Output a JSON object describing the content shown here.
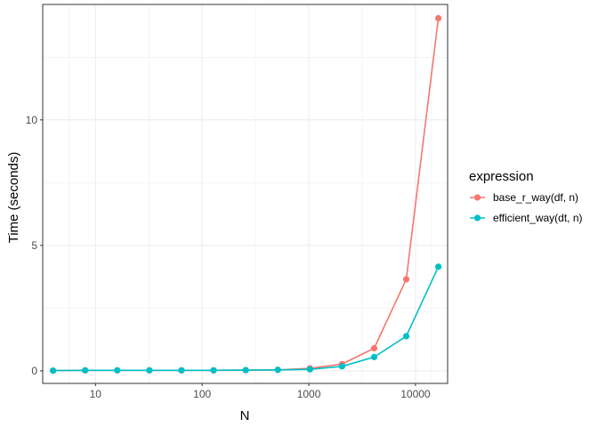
{
  "chart_data": {
    "type": "line",
    "xlabel": "N",
    "ylabel": "Time (seconds)",
    "x_scale": "log10",
    "xlim": [
      3.2,
      20000
    ],
    "ylim": [
      -0.5,
      14.6
    ],
    "x_ticks": [
      {
        "value": 10,
        "label": "10"
      },
      {
        "value": 100,
        "label": "100"
      },
      {
        "value": 1000,
        "label": "1000"
      },
      {
        "value": 10000,
        "label": "10000"
      }
    ],
    "y_ticks": [
      {
        "value": 0,
        "label": "0"
      },
      {
        "value": 5,
        "label": "5"
      },
      {
        "value": 10,
        "label": "10"
      }
    ],
    "grid": true,
    "legend": {
      "title": "expression",
      "position": "right"
    },
    "series": [
      {
        "name": "base_r_way(df, n)",
        "color": "#F8766D",
        "x": [
          4,
          8,
          16,
          32,
          64,
          128,
          256,
          512,
          1024,
          2048,
          4096,
          8192,
          16384
        ],
        "y": [
          0.01,
          0.02,
          0.02,
          0.02,
          0.02,
          0.02,
          0.03,
          0.04,
          0.1,
          0.27,
          0.9,
          3.65,
          14.05
        ]
      },
      {
        "name": "efficient_way(dt, n)",
        "color": "#00BFC4",
        "x": [
          4,
          8,
          16,
          32,
          64,
          128,
          256,
          512,
          1024,
          2048,
          4096,
          8192,
          16384
        ],
        "y": [
          0.01,
          0.02,
          0.02,
          0.02,
          0.02,
          0.02,
          0.03,
          0.04,
          0.06,
          0.18,
          0.55,
          1.38,
          4.15
        ]
      }
    ]
  }
}
